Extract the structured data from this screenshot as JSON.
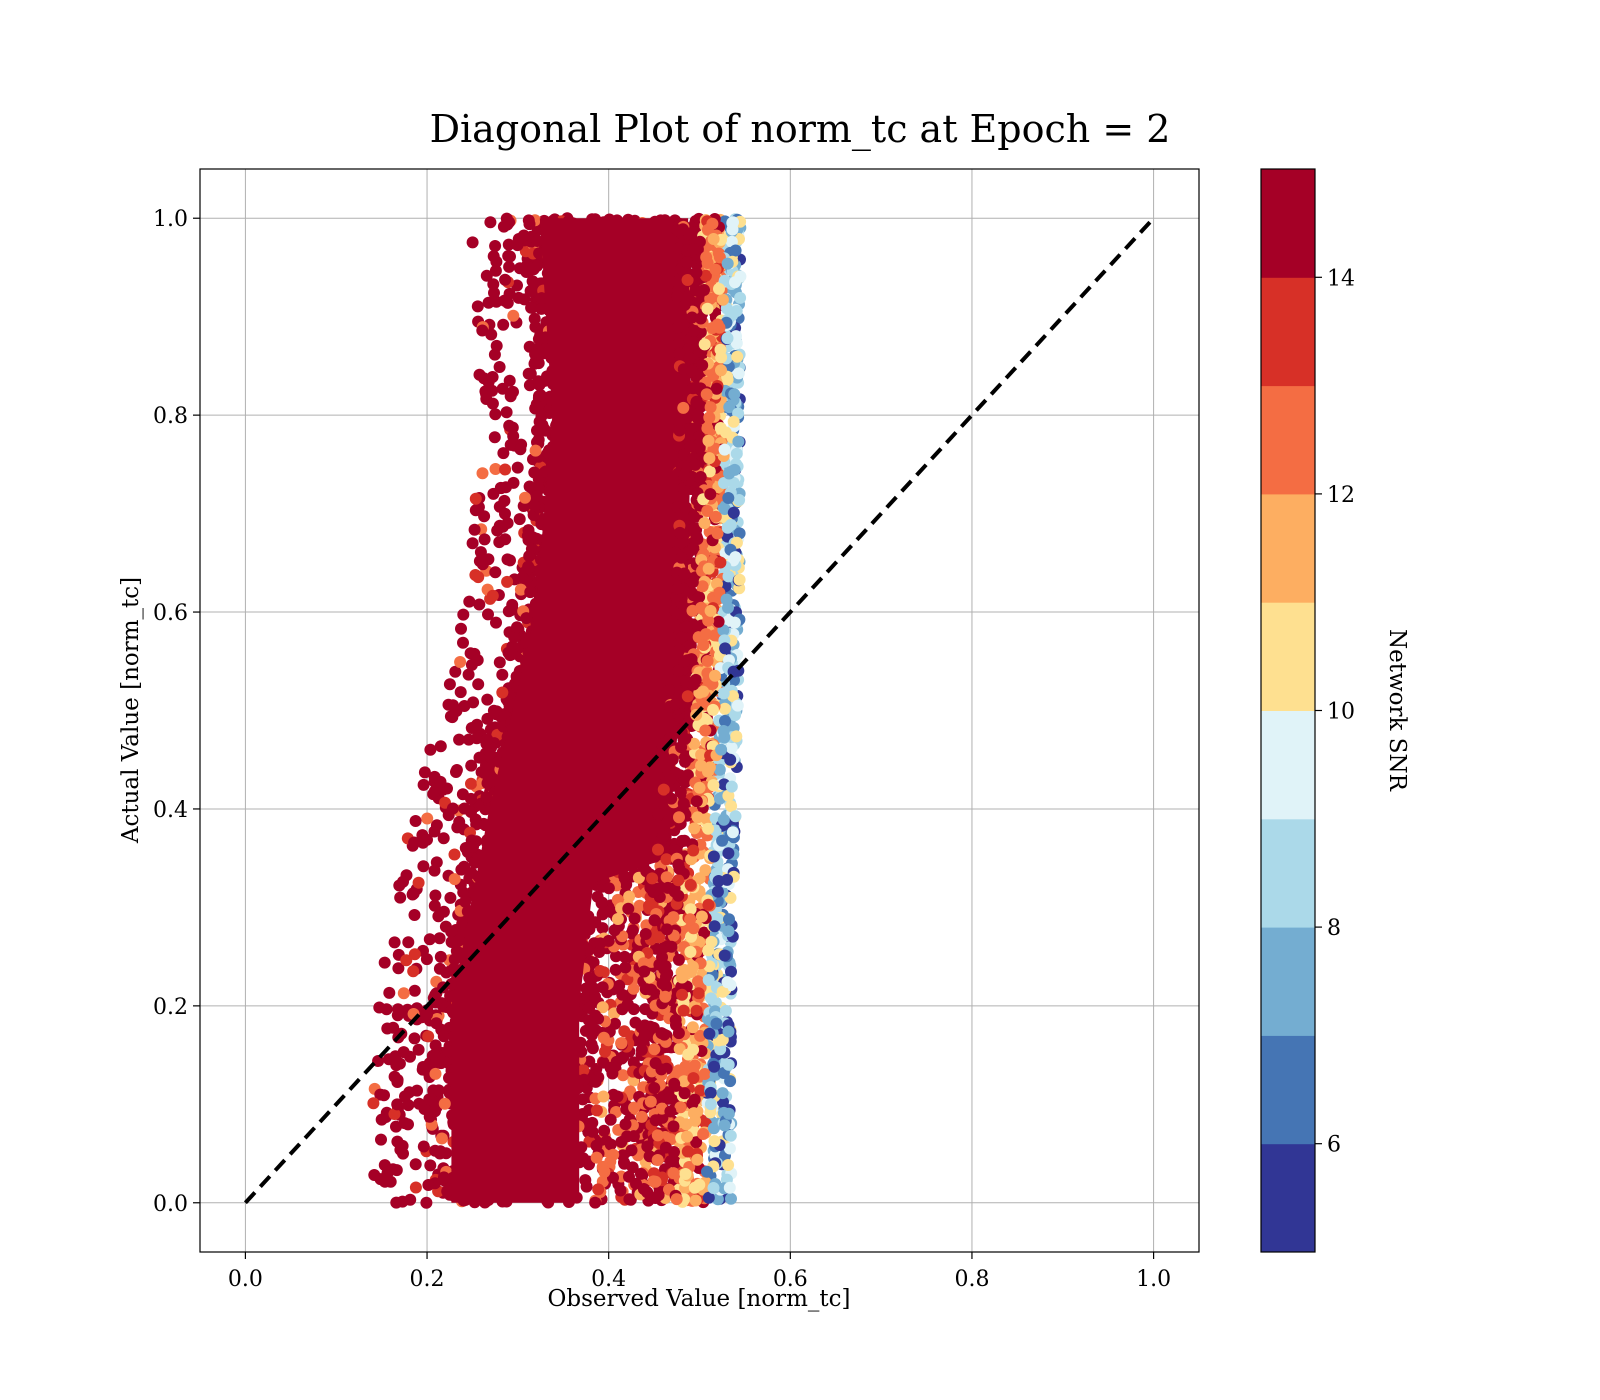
{
  "chart_data": {
    "type": "scatter",
    "title": "Diagonal Plot of norm_tc at Epoch = 2",
    "xlabel": "Observed Value [norm_tc]",
    "ylabel": "Actual Value [norm_tc]",
    "xlim": [
      -0.05,
      1.05
    ],
    "ylim": [
      -0.05,
      1.05
    ],
    "xticks": [
      0.0,
      0.2,
      0.4,
      0.6,
      0.8,
      1.0
    ],
    "yticks": [
      0.0,
      0.2,
      0.4,
      0.6,
      0.8,
      1.0
    ],
    "xtick_labels": [
      "0.0",
      "0.2",
      "0.4",
      "0.6",
      "0.8",
      "1.0"
    ],
    "ytick_labels": [
      "0.0",
      "0.2",
      "0.4",
      "0.6",
      "0.8",
      "1.0"
    ],
    "grid": true,
    "reference_line": {
      "style": "dashed",
      "color": "#000000",
      "x": [
        0.0,
        1.0
      ],
      "y": [
        0.0,
        1.0
      ]
    },
    "colorbar": {
      "label": "Network SNR",
      "colormap": "RdYlBu_r",
      "range": [
        5,
        15
      ],
      "levels": [
        5,
        6,
        7,
        8,
        9,
        10,
        11,
        12,
        13,
        14,
        15
      ],
      "colors": [
        "#313695",
        "#4575b4",
        "#74add1",
        "#abd9e9",
        "#e0f3f8",
        "#fee090",
        "#fdae61",
        "#f46d43",
        "#d73027",
        "#a50026"
      ],
      "ticks": [
        6,
        8,
        10,
        12,
        14
      ],
      "tick_labels": [
        "6",
        "8",
        "10",
        "12",
        "14"
      ]
    },
    "point_cloud": {
      "description_of_distribution": "dense band",
      "center_x_at_y0": 0.355,
      "center_x_at_y1": 0.43,
      "half_width": 0.16,
      "high_snr_core_color": "#a50026",
      "rows": [
        {
          "y": 0.0,
          "x_min": 0.2,
          "x_max": 0.535
        },
        {
          "y": 0.2,
          "x_min": 0.2,
          "x_max": 0.535
        },
        {
          "y": 0.4,
          "x_min": 0.245,
          "x_max": 0.54
        },
        {
          "y": 0.6,
          "x_min": 0.3,
          "x_max": 0.545
        },
        {
          "y": 0.8,
          "x_min": 0.32,
          "x_max": 0.545
        },
        {
          "y": 1.0,
          "x_min": 0.305,
          "x_max": 0.545
        }
      ]
    }
  }
}
